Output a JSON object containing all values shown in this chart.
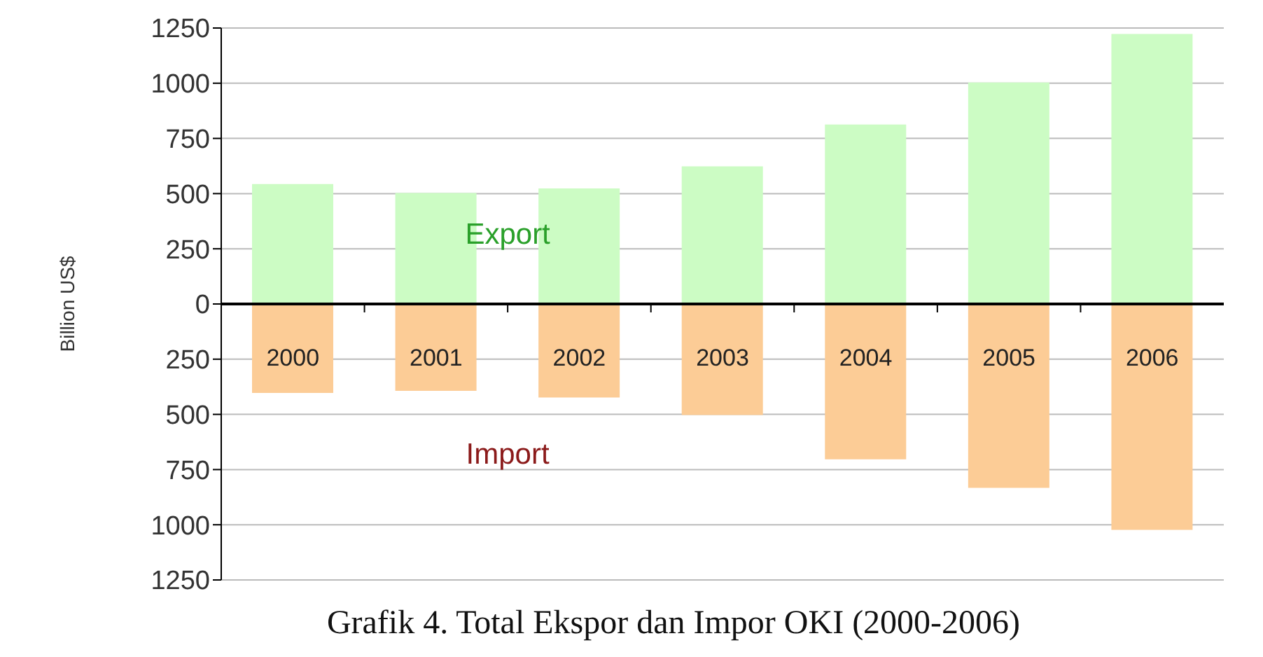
{
  "chart_data": {
    "type": "bar",
    "title": "Grafik 4. Total Ekspor dan Impor OKI (2000-2006)",
    "ylabel": "Billion US$",
    "categories": [
      "2000",
      "2001",
      "2002",
      "2003",
      "2004",
      "2005",
      "2006"
    ],
    "series": [
      {
        "name": "Export",
        "color": "#ccfcc4",
        "values": [
          540,
          500,
          520,
          620,
          810,
          1000,
          1220
        ]
      },
      {
        "name": "Import",
        "color": "#fccc96",
        "values": [
          -400,
          -390,
          -420,
          -500,
          -700,
          -830,
          -1020
        ]
      }
    ],
    "stacked": true,
    "ylim": [
      -1250,
      1250
    ],
    "yticks": [
      {
        "value": -1250,
        "label": "1250"
      },
      {
        "value": -1000,
        "label": "1000"
      },
      {
        "value": -750,
        "label": "750"
      },
      {
        "value": -500,
        "label": "500"
      },
      {
        "value": -250,
        "label": "250"
      },
      0,
      250,
      500,
      750,
      1000,
      1250
    ],
    "grid": "y"
  }
}
